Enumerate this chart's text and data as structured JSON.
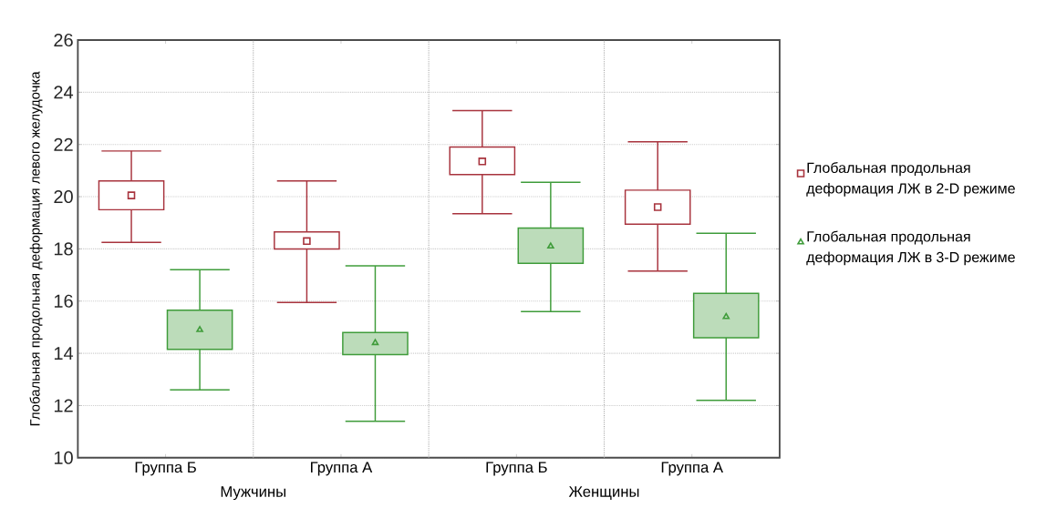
{
  "chart_data": {
    "type": "box",
    "ylabel": "Глобальная продольная деформация  левого желудочка",
    "categories": [
      "Группа Б",
      "Группа А",
      "Группа Б",
      "Группа А"
    ],
    "annotations": [
      "Мужчины",
      "Женщины"
    ],
    "ylim": [
      10,
      26
    ],
    "yticks": [
      10,
      12,
      14,
      16,
      18,
      20,
      22,
      24,
      26
    ],
    "grid": true,
    "legend": "right",
    "series": [
      {
        "name": "Глобальная продольная деформация ЛЖ в 2-D режиме",
        "color": "#a8333d",
        "marker": "square",
        "boxes": [
          {
            "low": 18.25,
            "q1": 19.5,
            "median": 20.05,
            "q3": 20.6,
            "high": 21.75
          },
          {
            "low": 15.95,
            "q1": 18.0,
            "median": 18.3,
            "q3": 18.65,
            "high": 20.6
          },
          {
            "low": 19.35,
            "q1": 20.85,
            "median": 21.35,
            "q3": 21.9,
            "high": 23.3
          },
          {
            "low": 17.15,
            "q1": 18.95,
            "median": 19.6,
            "q3": 20.25,
            "high": 22.1
          }
        ]
      },
      {
        "name": "Глобальная продольная деформация ЛЖ в 3-D режиме",
        "color": "#3f9c3a",
        "marker": "triangle",
        "boxes": [
          {
            "low": 12.6,
            "q1": 14.15,
            "median": 14.9,
            "q3": 15.65,
            "high": 17.2
          },
          {
            "low": 11.4,
            "q1": 13.95,
            "median": 14.4,
            "q3": 14.8,
            "high": 17.35
          },
          {
            "low": 15.6,
            "q1": 17.45,
            "median": 18.1,
            "q3": 18.8,
            "high": 20.55
          },
          {
            "low": 12.2,
            "q1": 14.6,
            "median": 15.4,
            "q3": 16.3,
            "high": 18.6
          }
        ]
      }
    ]
  }
}
